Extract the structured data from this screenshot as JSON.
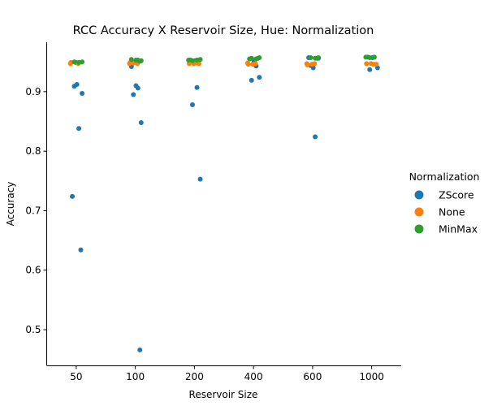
{
  "chart_data": {
    "type": "scatter",
    "subtype": "strip",
    "title": "RCC Accuracy X Reservoir Size, Hue: Normalization",
    "xlabel": "Reservoir Size",
    "ylabel": "Accuracy",
    "categories": [
      "50",
      "100",
      "200",
      "400",
      "600",
      "1000"
    ],
    "yticks": [
      "0.5",
      "0.6",
      "0.7",
      "0.8",
      "0.9"
    ],
    "ylim": [
      0.44,
      0.983
    ],
    "grid": false,
    "legend": {
      "title": "Normalization",
      "placement": "right"
    },
    "series": [
      {
        "name": "ZScore",
        "color": "#1f77b4",
        "points": [
          {
            "category": "50",
            "value": 0.909
          },
          {
            "category": "50",
            "value": 0.838
          },
          {
            "category": "50",
            "value": 0.897
          },
          {
            "category": "50",
            "value": 0.724
          },
          {
            "category": "50",
            "value": 0.912
          },
          {
            "category": "50",
            "value": 0.634
          },
          {
            "category": "50",
            "value": 0.949
          },
          {
            "category": "100",
            "value": 0.895
          },
          {
            "category": "100",
            "value": 0.906
          },
          {
            "category": "100",
            "value": 0.848
          },
          {
            "category": "100",
            "value": 0.942
          },
          {
            "category": "100",
            "value": 0.91
          },
          {
            "category": "100",
            "value": 0.466
          },
          {
            "category": "100",
            "value": 0.949
          },
          {
            "category": "200",
            "value": 0.878
          },
          {
            "category": "200",
            "value": 0.907
          },
          {
            "category": "200",
            "value": 0.753
          },
          {
            "category": "200",
            "value": 0.953
          },
          {
            "category": "200",
            "value": 0.952
          },
          {
            "category": "400",
            "value": 0.919
          },
          {
            "category": "400",
            "value": 0.943
          },
          {
            "category": "400",
            "value": 0.924
          },
          {
            "category": "400",
            "value": 0.955
          },
          {
            "category": "400",
            "value": 0.951
          },
          {
            "category": "400",
            "value": 0.956
          },
          {
            "category": "600",
            "value": 0.944
          },
          {
            "category": "600",
            "value": 0.824
          },
          {
            "category": "600",
            "value": 0.956
          },
          {
            "category": "600",
            "value": 0.957
          },
          {
            "category": "600",
            "value": 0.94
          },
          {
            "category": "600",
            "value": 0.956
          },
          {
            "category": "1000",
            "value": 0.937
          },
          {
            "category": "1000",
            "value": 0.958
          },
          {
            "category": "1000",
            "value": 0.94
          },
          {
            "category": "1000",
            "value": 0.958
          },
          {
            "category": "1000",
            "value": 0.957
          }
        ]
      },
      {
        "name": "None",
        "color": "#ff7f0e",
        "points": [
          {
            "category": "50",
            "value": 0.947
          },
          {
            "category": "50",
            "value": 0.949
          },
          {
            "category": "50",
            "value": 0.947
          },
          {
            "category": "100",
            "value": 0.947
          },
          {
            "category": "100",
            "value": 0.949
          },
          {
            "category": "100",
            "value": 0.947
          },
          {
            "category": "100",
            "value": 0.948
          },
          {
            "category": "200",
            "value": 0.947
          },
          {
            "category": "200",
            "value": 0.947
          },
          {
            "category": "200",
            "value": 0.948
          },
          {
            "category": "200",
            "value": 0.947
          },
          {
            "category": "400",
            "value": 0.946
          },
          {
            "category": "400",
            "value": 0.947
          },
          {
            "category": "400",
            "value": 0.946
          },
          {
            "category": "400",
            "value": 0.948
          },
          {
            "category": "600",
            "value": 0.946
          },
          {
            "category": "600",
            "value": 0.947
          },
          {
            "category": "600",
            "value": 0.945
          },
          {
            "category": "600",
            "value": 0.947
          },
          {
            "category": "1000",
            "value": 0.946
          },
          {
            "category": "1000",
            "value": 0.947
          },
          {
            "category": "1000",
            "value": 0.946
          },
          {
            "category": "1000",
            "value": 0.947
          }
        ]
      },
      {
        "name": "MinMax",
        "color": "#2ca02c",
        "points": [
          {
            "category": "50",
            "value": 0.95
          },
          {
            "category": "50",
            "value": 0.949
          },
          {
            "category": "50",
            "value": 0.95
          },
          {
            "category": "100",
            "value": 0.953
          },
          {
            "category": "100",
            "value": 0.952
          },
          {
            "category": "100",
            "value": 0.954
          },
          {
            "category": "100",
            "value": 0.953
          },
          {
            "category": "100",
            "value": 0.951
          },
          {
            "category": "200",
            "value": 0.953
          },
          {
            "category": "200",
            "value": 0.952
          },
          {
            "category": "200",
            "value": 0.953
          },
          {
            "category": "200",
            "value": 0.954
          },
          {
            "category": "400",
            "value": 0.956
          },
          {
            "category": "400",
            "value": 0.955
          },
          {
            "category": "400",
            "value": 0.957
          },
          {
            "category": "400",
            "value": 0.955
          },
          {
            "category": "600",
            "value": 0.957
          },
          {
            "category": "600",
            "value": 0.956
          },
          {
            "category": "600",
            "value": 0.957
          },
          {
            "category": "1000",
            "value": 0.958
          },
          {
            "category": "1000",
            "value": 0.957
          },
          {
            "category": "1000",
            "value": 0.958
          }
        ]
      }
    ]
  }
}
